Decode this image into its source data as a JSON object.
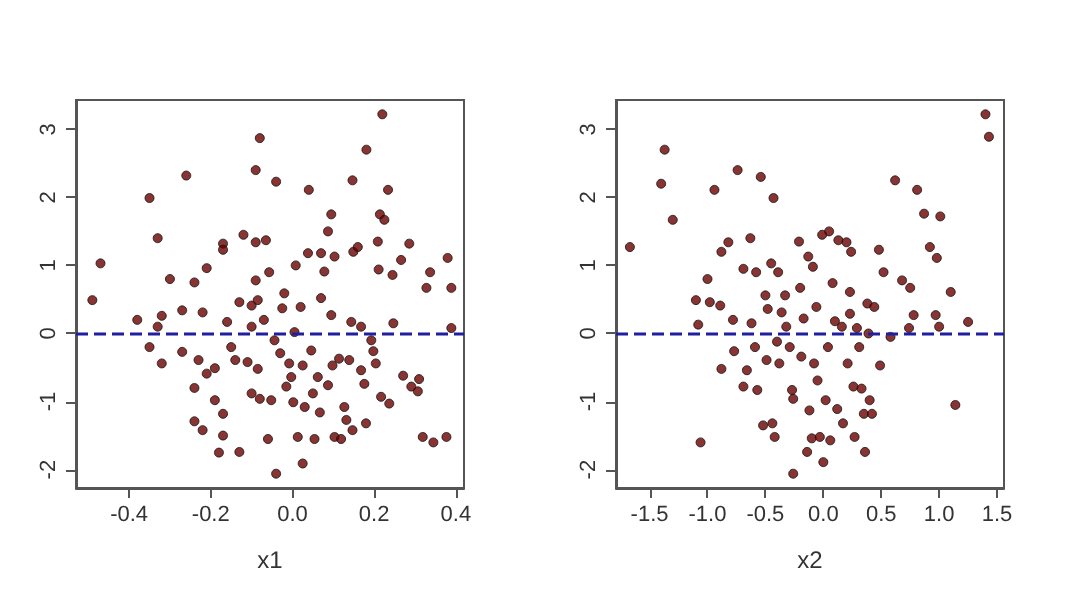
{
  "chart_data": [
    {
      "type": "scatter",
      "xlabel": "x1",
      "marker": "circle",
      "xlim": [
        -0.53,
        0.42
      ],
      "ylim": [
        -2.27,
        3.43
      ],
      "xticks": [
        -0.4,
        -0.2,
        {
          "value": 0,
          "label": "0.0"
        },
        0.2,
        0.4
      ],
      "yticks": [
        -2,
        -1,
        0,
        1,
        2,
        3
      ],
      "ref_lines": [
        {
          "axis": "y",
          "value": 0,
          "color": "#1f1f9f",
          "line_style": "dashed"
        }
      ],
      "series": [
        {
          "color": "#6b0000",
          "x": [
            -0.49,
            -0.47,
            -0.38,
            -0.35,
            -0.35,
            -0.33,
            -0.33,
            -0.32,
            -0.32,
            -0.26,
            -0.3,
            -0.27,
            -0.27,
            -0.24,
            -0.24,
            -0.24,
            -0.23,
            -0.22,
            -0.21,
            -0.22,
            -0.21,
            -0.19,
            -0.19,
            -0.17,
            -0.17,
            -0.17,
            -0.17,
            -0.18,
            -0.16,
            -0.15,
            -0.14,
            -0.13,
            -0.13,
            -0.12,
            -0.11,
            -0.1,
            -0.1,
            -0.1,
            -0.09,
            -0.09,
            -0.09,
            -0.085,
            -0.08,
            -0.085,
            -0.08,
            -0.07,
            -0.065,
            -0.06,
            -0.057,
            -0.052,
            -0.044,
            -0.04,
            -0.04,
            -0.03,
            -0.025,
            -0.02,
            -0.015,
            -0.008,
            -0.003,
            0.002,
            0.005,
            0.008,
            0.013,
            0.02,
            0.025,
            0.03,
            0.025,
            0.038,
            0.04,
            0.046,
            0.05,
            0.054,
            0.062,
            0.067,
            0.07,
            0.07,
            0.078,
            0.087,
            0.087,
            0.095,
            0.095,
            0.098,
            0.103,
            0.103,
            0.114,
            0.119,
            0.127,
            0.132,
            0.139,
            0.144,
            0.147,
            0.149,
            0.147,
            0.16,
            0.168,
            0.168,
            0.176,
            0.181,
            0.18,
            0.193,
            0.198,
            0.204,
            0.209,
            0.211,
            0.214,
            0.217,
            0.22,
            0.225,
            0.234,
            0.237,
            0.245,
            0.247,
            0.266,
            0.271,
            0.286,
            0.291,
            0.307,
            0.31,
            0.319,
            0.328,
            0.337,
            0.345,
            0.377,
            0.38,
            0.389,
            0.389
          ],
          "values": [
            0.49,
            1.03,
            0.2,
            1.99,
            -0.2,
            1.4,
            0.1,
            -0.44,
            0.26,
            2.32,
            0.8,
            0.34,
            -0.27,
            0.75,
            -0.8,
            -1.29,
            -0.39,
            -1.42,
            0.96,
            0.31,
            -0.59,
            -0.51,
            -0.98,
            1.32,
            1.23,
            -1.18,
            -1.5,
            -1.75,
            0.17,
            -0.2,
            -0.39,
            0.46,
            -1.74,
            1.45,
            -0.42,
            0.1,
            0.41,
            -0.88,
            0.78,
            2.4,
            1.34,
            0.49,
            2.87,
            -0.52,
            -0.96,
            0.2,
            1.37,
            -1.55,
            0.9,
            -0.98,
            -0.1,
            2.23,
            -2.06,
            -0.29,
            0.37,
            0.59,
            -0.78,
            -0.44,
            -0.64,
            -1.01,
            0.02,
            1.0,
            -1.52,
            0.39,
            -0.47,
            -1.08,
            -1.91,
            1.18,
            2.11,
            -0.25,
            -0.88,
            -1.55,
            -0.64,
            -1.16,
            0.52,
            1.18,
            0.91,
            1.5,
            -0.76,
            1.75,
            0.27,
            -0.47,
            1.13,
            -1.52,
            -0.37,
            -1.55,
            -1.08,
            -1.27,
            -0.39,
            0.17,
            2.25,
            1.2,
            -1.42,
            1.27,
            0.1,
            -0.54,
            -0.74,
            2.7,
            -1.32,
            -0.1,
            -0.26,
            -0.44,
            1.35,
            0.94,
            1.75,
            -0.93,
            3.22,
            1.67,
            2.11,
            -1.03,
            0.86,
            0.15,
            1.08,
            -0.62,
            1.32,
            -0.78,
            -0.85,
            -0.67,
            -1.52,
            0.67,
            0.9,
            -1.6,
            -1.52,
            1.11,
            0.67,
            0.08
          ]
        }
      ]
    },
    {
      "type": "scatter",
      "xlabel": "x2",
      "marker": "circle",
      "xlim": [
        -1.79,
        1.56
      ],
      "ylim": [
        -2.27,
        3.43
      ],
      "xticks": [
        -1.5,
        {
          "value": -1,
          "label": "-1.0"
        },
        -0.5,
        {
          "value": 0,
          "label": "0.0"
        },
        0.5,
        {
          "value": 1,
          "label": "1.0"
        },
        1.5
      ],
      "yticks": [
        -2,
        -1,
        0,
        1,
        2,
        3
      ],
      "ref_lines": [
        {
          "axis": "y",
          "value": 0,
          "color": "#1f1f9f",
          "line_style": "dashed"
        }
      ],
      "series": [
        {
          "color": "#6b0000",
          "x": [
            -1.67,
            -1.4,
            -1.37,
            -1.3,
            -1.1,
            -1.08,
            -1.06,
            -1.0,
            -0.98,
            -0.94,
            -0.89,
            -0.88,
            -0.88,
            -0.82,
            -0.78,
            -0.77,
            -0.74,
            -0.69,
            -0.69,
            -0.66,
            -0.63,
            -0.62,
            -0.59,
            -0.58,
            -0.57,
            -0.54,
            -0.52,
            -0.5,
            -0.49,
            -0.48,
            -0.45,
            -0.44,
            -0.43,
            -0.42,
            -0.4,
            -0.39,
            -0.38,
            -0.36,
            -0.33,
            -0.32,
            -0.29,
            -0.27,
            -0.26,
            -0.26,
            -0.21,
            -0.2,
            -0.19,
            -0.17,
            -0.14,
            -0.13,
            -0.12,
            -0.1,
            -0.09,
            -0.08,
            -0.06,
            -0.05,
            -0.03,
            -0.01,
            0.0,
            0.02,
            0.04,
            0.05,
            0.06,
            0.08,
            0.1,
            0.12,
            0.13,
            0.16,
            0.17,
            0.2,
            0.21,
            0.23,
            0.23,
            0.24,
            0.26,
            0.27,
            0.29,
            0.31,
            0.33,
            0.35,
            0.36,
            0.38,
            0.39,
            0.4,
            0.42,
            0.44,
            0.48,
            0.49,
            0.52,
            0.58,
            0.62,
            0.68,
            0.74,
            0.75,
            0.78,
            0.81,
            0.87,
            0.92,
            0.97,
            0.98,
            1.0,
            1.01,
            1.1,
            1.14,
            1.25,
            1.4,
            1.43
          ],
          "values": [
            1.27,
            2.2,
            2.7,
            1.67,
            0.49,
            0.13,
            -1.6,
            0.8,
            0.46,
            2.11,
            0.41,
            1.2,
            -0.52,
            1.34,
            0.2,
            -0.26,
            2.4,
            -0.78,
            0.95,
            -0.54,
            1.4,
            0.15,
            -0.2,
            0.9,
            -0.83,
            2.3,
            -1.35,
            0.56,
            -0.39,
            0.36,
            1.03,
            -1.32,
            1.99,
            -1.52,
            -0.12,
            0.9,
            -0.44,
            0.31,
            0.56,
            0.1,
            -0.2,
            -0.83,
            -0.96,
            -2.06,
            1.35,
            0.67,
            -0.34,
            0.22,
            -1.74,
            1.13,
            -1.13,
            -1.54,
            0.98,
            -0.44,
            0.39,
            -0.69,
            -1.52,
            1.45,
            -1.89,
            -0.98,
            -0.2,
            1.5,
            -1.57,
            0.74,
            0.18,
            -1.11,
            1.37,
            0.1,
            -1.32,
            1.34,
            -0.44,
            0.61,
            0.29,
            1.2,
            -0.78,
            -1.52,
            0.08,
            -0.2,
            -0.81,
            -1.18,
            -1.74,
            0.44,
            0.0,
            -0.98,
            -1.18,
            0.39,
            1.23,
            -0.47,
            0.9,
            -0.05,
            2.25,
            0.78,
            0.08,
            0.67,
            0.27,
            2.11,
            1.76,
            1.27,
            0.27,
            1.11,
            0.1,
            1.72,
            0.61,
            -1.05,
            0.17,
            3.22,
            2.89
          ]
        }
      ]
    }
  ]
}
